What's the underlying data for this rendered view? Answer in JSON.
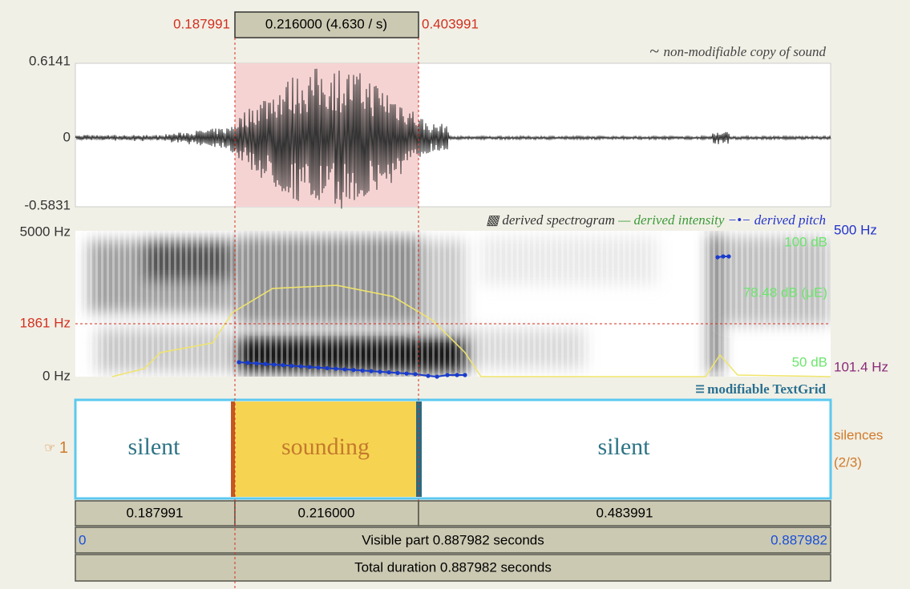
{
  "selection": {
    "start": "0.187991",
    "duration": "0.216000 (4.630 / s)",
    "end": "0.403991"
  },
  "sound": {
    "title": "non-modifiable copy of sound",
    "ymax": "0.6141",
    "yzero": "0",
    "ymin": "-0.5831"
  },
  "analysis": {
    "legend": [
      "derived spectrogram",
      "derived intensity",
      "derived pitch"
    ],
    "freq_max": "5000 Hz",
    "cursor_freq": "1861 Hz",
    "freq_min": "0 Hz",
    "pitch_max": "500 Hz",
    "intensity_max": "100 dB",
    "intensity_mean": "78.48 dB (μE)",
    "intensity_min": "50 dB",
    "pitch_min": "101.4 Hz"
  },
  "textgrid": {
    "title": "modifiable TextGrid",
    "tier_number": "1",
    "tier_name": "silences",
    "tier_count": "(2/3)",
    "intervals": [
      "silent",
      "sounding",
      "silent"
    ]
  },
  "durations": [
    "0.187991",
    "0.216000",
    "0.483991"
  ],
  "visible": {
    "start": "0",
    "label": "Visible part 0.887982 seconds",
    "end": "0.887982"
  },
  "total": "Total duration 0.887982 seconds"
}
